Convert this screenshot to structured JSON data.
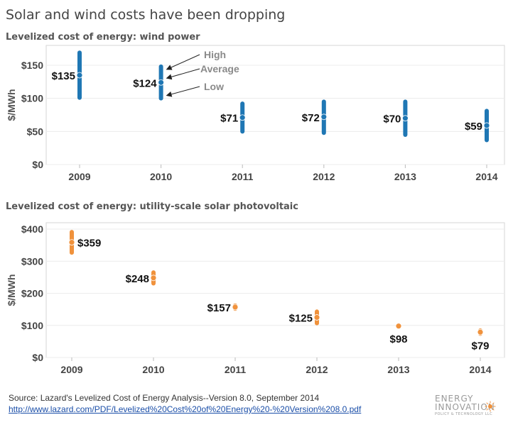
{
  "title": "Solar and wind costs have been dropping",
  "chart_data": [
    {
      "type": "range",
      "title": "Levelized cost of energy: wind power",
      "ylabel": "$/MWh",
      "ylim": [
        0,
        180
      ],
      "yticks": [
        0,
        50,
        100,
        150
      ],
      "ytick_labels": [
        "$0",
        "$50",
        "$100",
        "$150"
      ],
      "categories": [
        "2009",
        "2010",
        "2011",
        "2012",
        "2013",
        "2014"
      ],
      "color": "#1f77b4",
      "points": [
        {
          "year": "2009",
          "low": 101,
          "avg": 135,
          "high": 169,
          "label": "$135"
        },
        {
          "year": "2010",
          "low": 100,
          "avg": 124,
          "high": 148,
          "label": "$124"
        },
        {
          "year": "2011",
          "low": 50,
          "avg": 71,
          "high": 92,
          "label": "$71"
        },
        {
          "year": "2012",
          "low": 48,
          "avg": 72,
          "high": 95,
          "label": "$72"
        },
        {
          "year": "2013",
          "low": 45,
          "avg": 70,
          "high": 95,
          "label": "$70"
        },
        {
          "year": "2014",
          "low": 37,
          "avg": 59,
          "high": 81,
          "label": "$59"
        }
      ],
      "annotations": {
        "high": "High",
        "average": "Average",
        "low": "Low"
      },
      "grid": true
    },
    {
      "type": "range",
      "title": "Levelized cost of energy: utility-scale solar photovoltaic",
      "ylabel": "$/MWh",
      "ylim": [
        0,
        420
      ],
      "yticks": [
        0,
        100,
        200,
        300,
        400
      ],
      "ytick_labels": [
        "$0",
        "$100",
        "$200",
        "$300",
        "$400"
      ],
      "categories": [
        "2009",
        "2010",
        "2011",
        "2012",
        "2013",
        "2014"
      ],
      "color": "#f0923c",
      "points": [
        {
          "year": "2009",
          "low": 327,
          "avg": 359,
          "high": 391,
          "label": "$359"
        },
        {
          "year": "2010",
          "low": 231,
          "avg": 248,
          "high": 265,
          "label": "$248"
        },
        {
          "year": "2011",
          "low": 152,
          "avg": 157,
          "high": 162,
          "label": "$157"
        },
        {
          "year": "2012",
          "low": 107,
          "avg": 125,
          "high": 143,
          "label": "$125"
        },
        {
          "year": "2013",
          "low": 95,
          "avg": 98,
          "high": 101,
          "label": "$98"
        },
        {
          "year": "2014",
          "low": 74,
          "avg": 79,
          "high": 84,
          "label": "$79"
        }
      ],
      "grid": true
    }
  ],
  "source": {
    "text": "Source: Lazard's Levelized Cost of Energy Analysis--Version 8.0, September 2014",
    "link": "http://www.lazard.com/PDF/Levelized%20Cost%20of%20Energy%20-%20Version%208.0.pdf"
  },
  "logo": {
    "line1": "ENERGY",
    "line2": "INNOVATION",
    "line3": "POLICY & TECHNOLOGY LLC"
  }
}
